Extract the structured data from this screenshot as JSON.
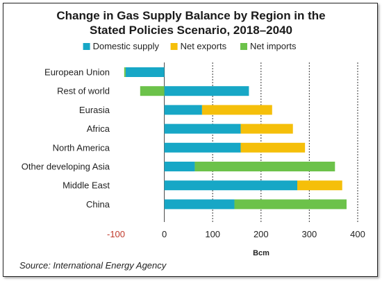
{
  "chart_data": {
    "type": "bar",
    "orientation": "horizontal",
    "stacked": true,
    "title_line1": "Change in Gas Supply Balance by Region in the",
    "title_line2": "Stated Policies Scenario, 2018–2040",
    "xlabel": "Bcm",
    "xlim": [
      -100,
      400
    ],
    "xticks": [
      "-100",
      "0",
      "100",
      "200",
      "300",
      "400"
    ],
    "xtick_values": [
      -100,
      0,
      100,
      200,
      300,
      400
    ],
    "grid": "vertical-dotted",
    "legend_position": "top",
    "categories": [
      "European Union",
      "Rest of world",
      "Eurasia",
      "Africa",
      "North America",
      "Other developing Asia",
      "Middle East",
      "China"
    ],
    "series": [
      {
        "name": "Domestic supply",
        "color": "#17a7c6",
        "values": [
          -80,
          175,
          78,
          158,
          158,
          63,
          275,
          145
        ]
      },
      {
        "name": "Net exports",
        "color": "#f5bf0a",
        "values": [
          0,
          0,
          145,
          108,
          133,
          0,
          93,
          0
        ]
      },
      {
        "name": "Net imports",
        "color": "#6cc24a",
        "values": [
          -3,
          -50,
          0,
          0,
          0,
          290,
          0,
          232
        ]
      }
    ],
    "source": "Source: International Energy Agency"
  }
}
